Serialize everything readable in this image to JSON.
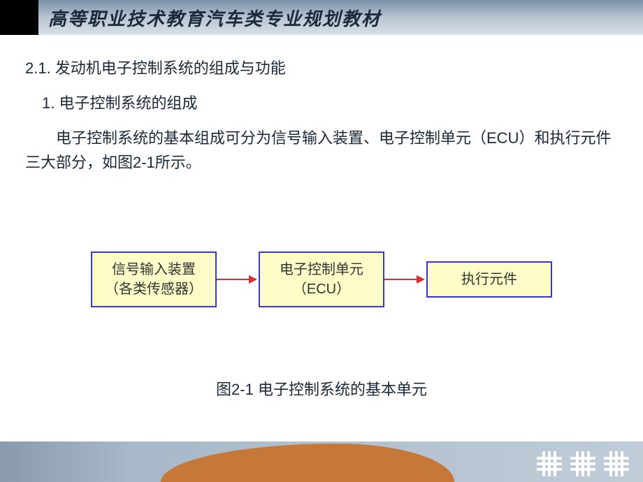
{
  "header": {
    "title": "高等职业技术教育汽车类专业规划教材"
  },
  "content": {
    "section_title": "2.1. 发动机电子控制系统的组成与功能",
    "subsection_title": "1. 电子控制系统的组成",
    "body_text": "电子控制系统的基本组成可分为信号输入装置、电子控制单元（ECU）和执行元件三大部分，如图2-1所示。"
  },
  "diagram": {
    "type": "flowchart",
    "nodes": [
      {
        "id": "input",
        "line1": "信号输入装置",
        "line2": "（各类传感器）"
      },
      {
        "id": "ecu",
        "line1": "电子控制单元",
        "line2": "（ECU）"
      },
      {
        "id": "actuator",
        "line1": "执行元件",
        "line2": ""
      }
    ],
    "box_border_color": "#3838c8",
    "box_bg_color": "#fdfdc8",
    "arrow_color": "#d83030",
    "caption": "图2-1  电子控制系统的基本单元"
  },
  "colors": {
    "header_gradient_from": "#7a8fa8",
    "header_gradient_to": "#d8e0e8",
    "text_color": "#1a2838",
    "bottom_strip": "#a8b8c8",
    "orange_accent": "#c67838"
  }
}
